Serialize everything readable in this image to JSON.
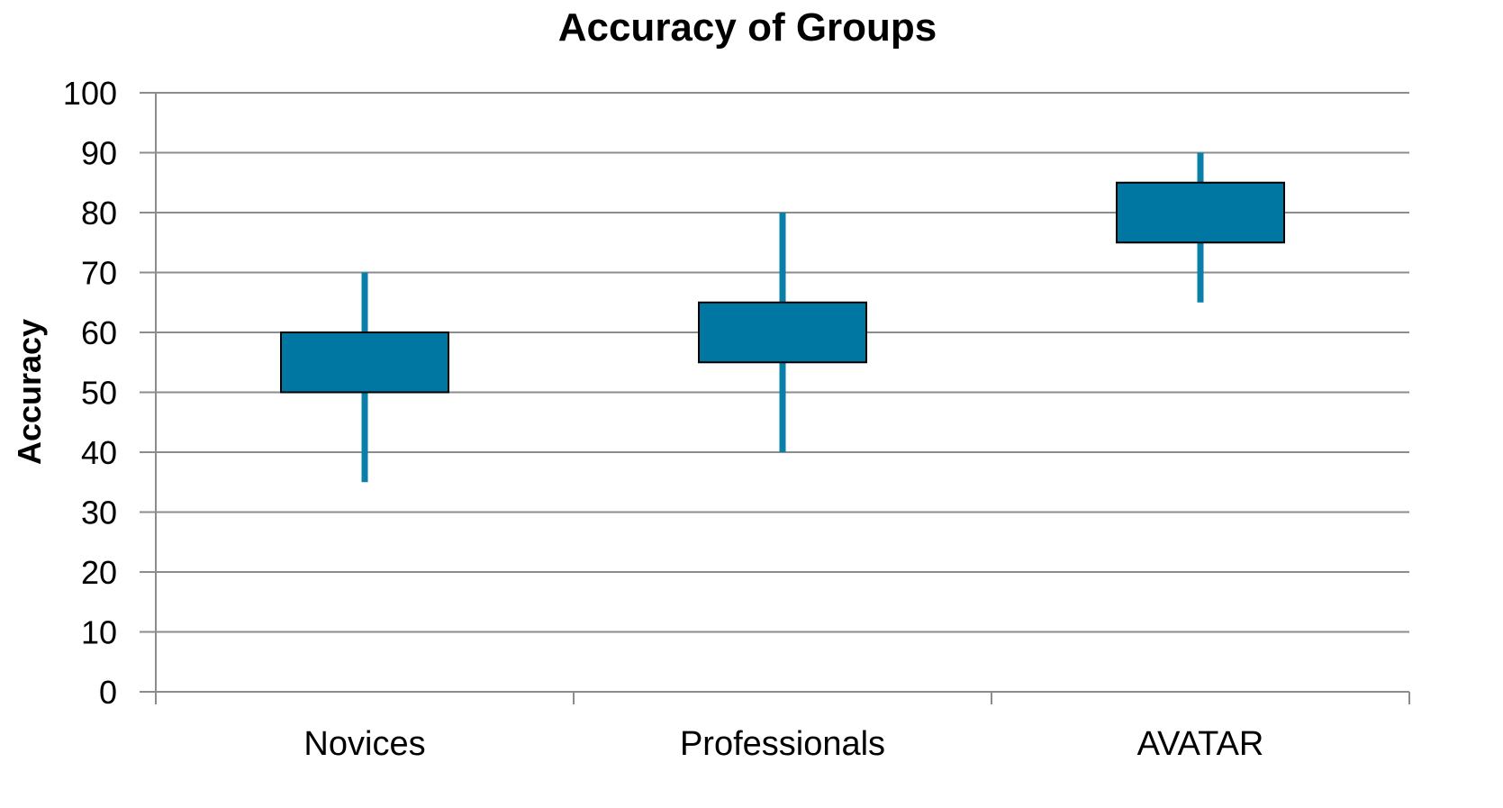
{
  "chart_data": {
    "type": "box",
    "title": "Accuracy of Groups",
    "xlabel": "",
    "ylabel": "Accuracy",
    "ylim": [
      0,
      100
    ],
    "yticks": [
      "0",
      "10",
      "20",
      "30",
      "40",
      "50",
      "60",
      "70",
      "80",
      "90",
      "100"
    ],
    "grid": true,
    "categories": [
      "Novices",
      "Professionals",
      "AVATAR"
    ],
    "boxes": [
      {
        "category": "Novices",
        "min": 35,
        "q1": 50,
        "q3": 60,
        "max": 70
      },
      {
        "category": "Professionals",
        "min": 40,
        "q1": 55,
        "q3": 65,
        "max": 80
      },
      {
        "category": "AVATAR",
        "min": 65,
        "q1": 75,
        "q3": 85,
        "max": 90
      }
    ],
    "colors": {
      "box": "#0077A3",
      "whisker": "#0A7FA8",
      "grid": "#8C8C8C",
      "axis": "#8C8C8C"
    }
  }
}
